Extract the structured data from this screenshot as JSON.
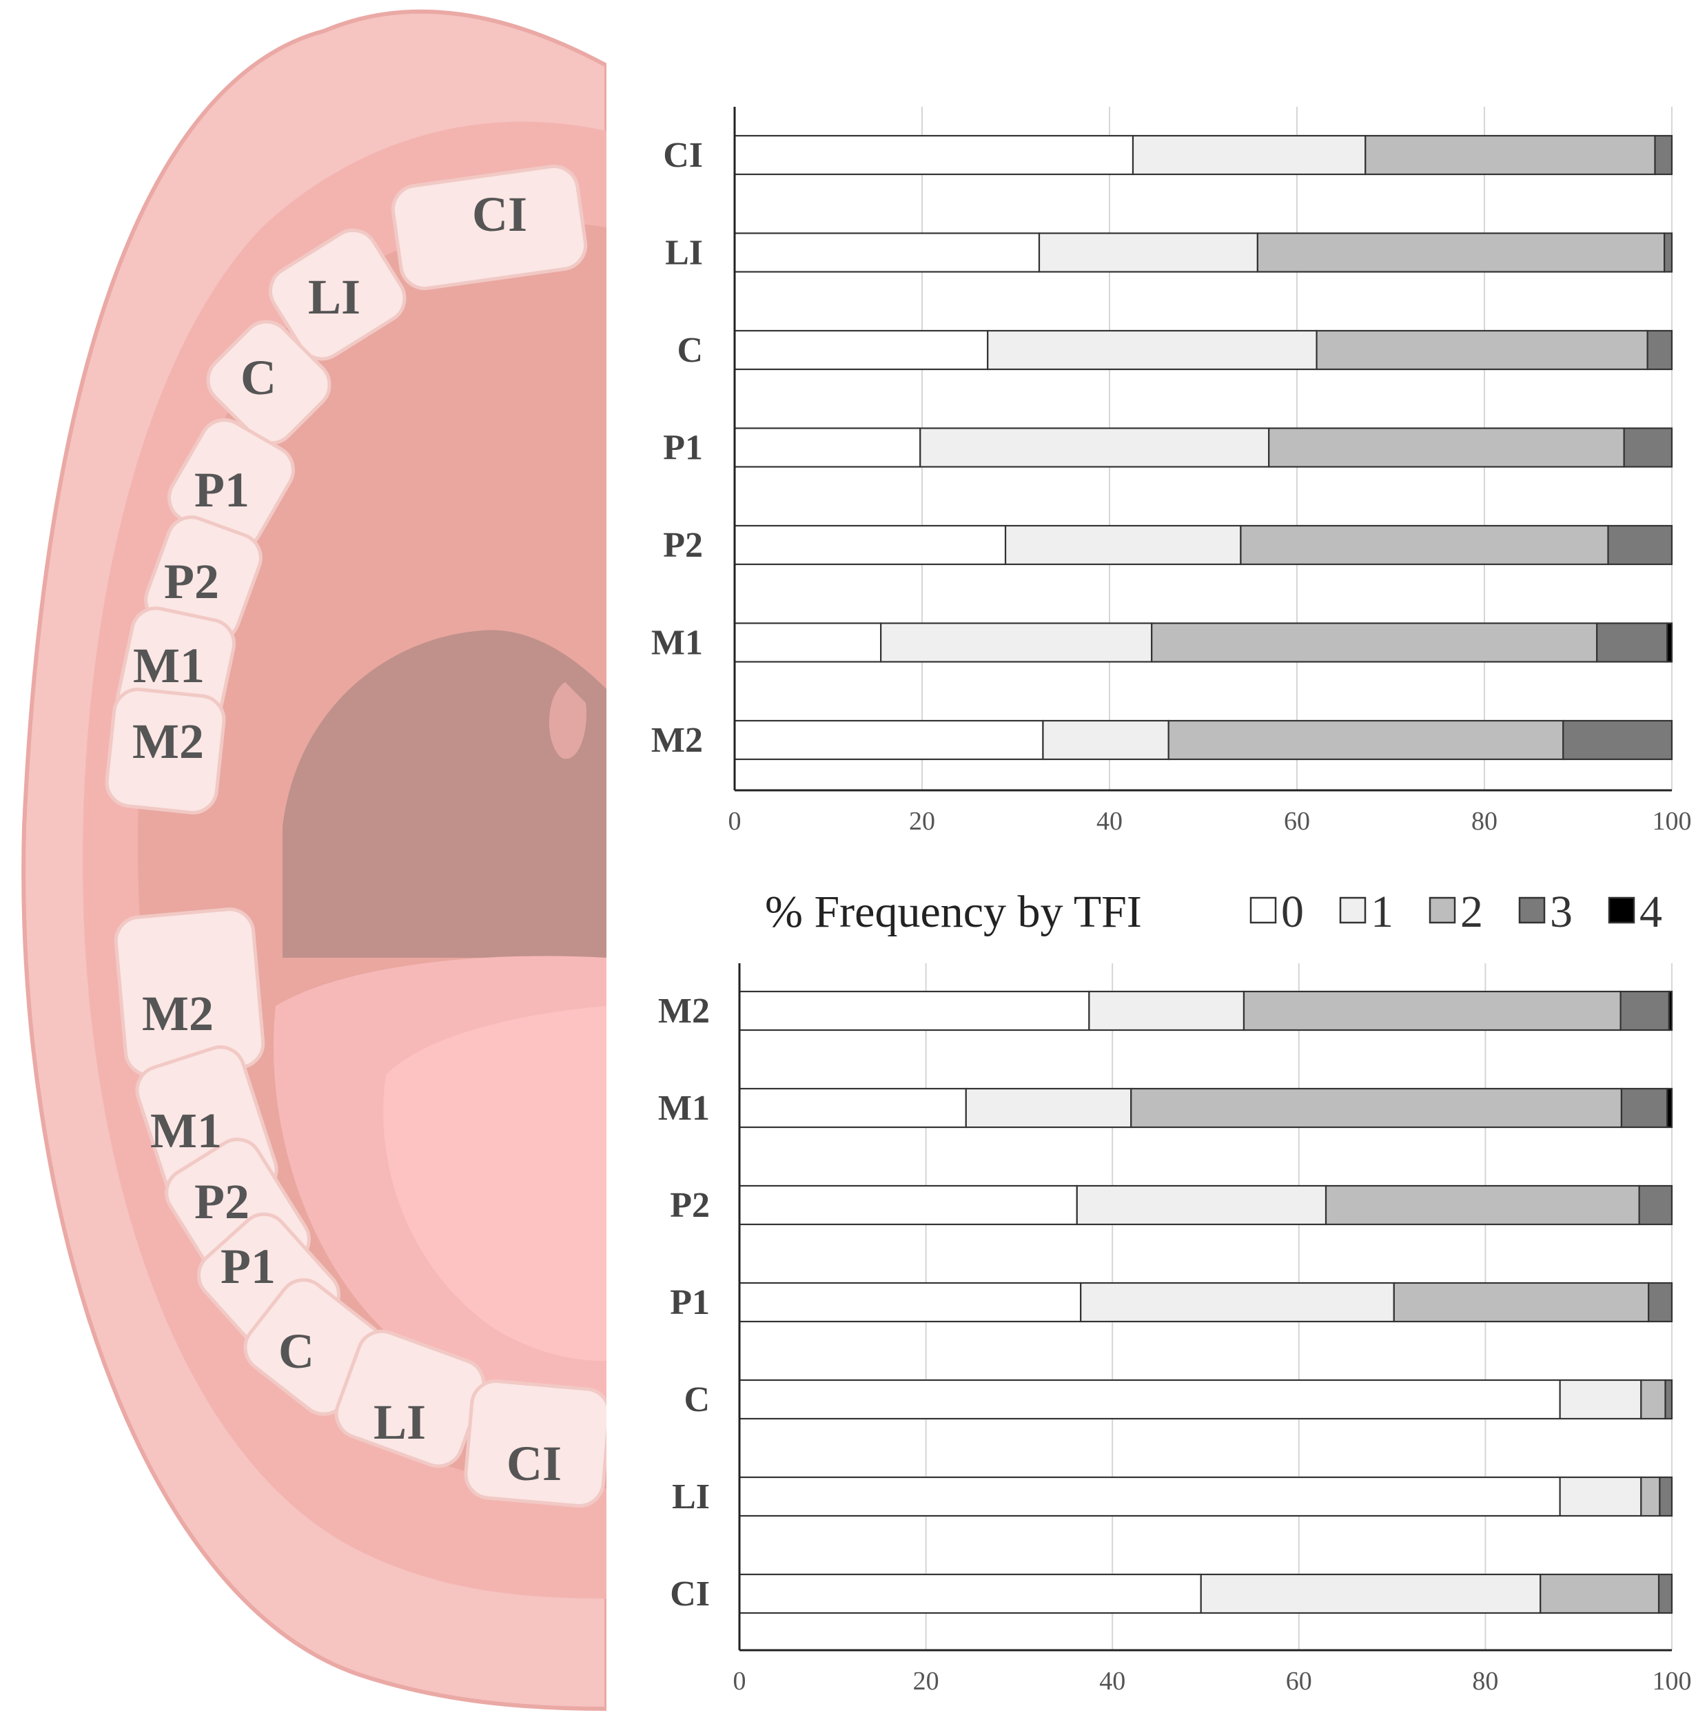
{
  "colors": {
    "0": "#ffffff",
    "1": "#efefef",
    "2": "#bdbdbd",
    "3": "#7a7a7a",
    "4": "#000000"
  },
  "legend": {
    "title": "% Frequency by TFI",
    "items": [
      {
        "key": "0",
        "label": "0"
      },
      {
        "key": "1",
        "label": "1"
      },
      {
        "key": "2",
        "label": "2"
      },
      {
        "key": "3",
        "label": "3"
      },
      {
        "key": "4",
        "label": "4"
      }
    ]
  },
  "illustration": {
    "upper_teeth": [
      "CI",
      "LI",
      "C",
      "P1",
      "P2",
      "M1",
      "M2"
    ],
    "lower_teeth": [
      "M2",
      "M1",
      "P2",
      "P1",
      "C",
      "LI",
      "CI"
    ]
  },
  "chart_data": [
    {
      "type": "bar",
      "orientation": "horizontal",
      "stacked": true,
      "categories": [
        "CI",
        "LI",
        "C",
        "P1",
        "P2",
        "M1",
        "M2"
      ],
      "series": [
        {
          "name": "0",
          "values": [
            42.5,
            32.5,
            27.0,
            19.8,
            28.9,
            15.6,
            32.9
          ]
        },
        {
          "name": "1",
          "values": [
            24.8,
            23.3,
            35.1,
            37.2,
            25.1,
            28.9,
            13.4
          ]
        },
        {
          "name": "2",
          "values": [
            30.9,
            43.4,
            35.3,
            37.9,
            39.2,
            47.5,
            42.1
          ]
        },
        {
          "name": "3",
          "values": [
            1.8,
            0.8,
            2.6,
            5.1,
            6.8,
            7.5,
            11.6
          ]
        },
        {
          "name": "4",
          "values": [
            0,
            0,
            0,
            0,
            0,
            0.5,
            0
          ]
        }
      ],
      "xlim": [
        0,
        100
      ],
      "xticks": [
        "0",
        "20",
        "40",
        "60",
        "80",
        "100"
      ],
      "grid": "vertical"
    },
    {
      "type": "bar",
      "orientation": "horizontal",
      "stacked": true,
      "categories": [
        "M2",
        "M1",
        "P2",
        "P1",
        "C",
        "LI",
        "CI"
      ],
      "series": [
        {
          "name": "0",
          "values": [
            37.5,
            24.3,
            36.2,
            36.6,
            88.0,
            88.0,
            49.5
          ]
        },
        {
          "name": "1",
          "values": [
            16.6,
            17.7,
            26.7,
            33.6,
            8.7,
            8.7,
            36.4
          ]
        },
        {
          "name": "2",
          "values": [
            40.4,
            52.6,
            33.6,
            27.3,
            2.6,
            2.0,
            12.7
          ]
        },
        {
          "name": "3",
          "values": [
            5.2,
            4.9,
            3.5,
            2.5,
            0.7,
            1.3,
            1.4
          ]
        },
        {
          "name": "4",
          "values": [
            0.3,
            0.5,
            0,
            0,
            0,
            0,
            0
          ]
        }
      ],
      "xlim": [
        0,
        100
      ],
      "xticks": [
        "0",
        "20",
        "40",
        "60",
        "80",
        "100"
      ],
      "grid": "vertical"
    }
  ]
}
